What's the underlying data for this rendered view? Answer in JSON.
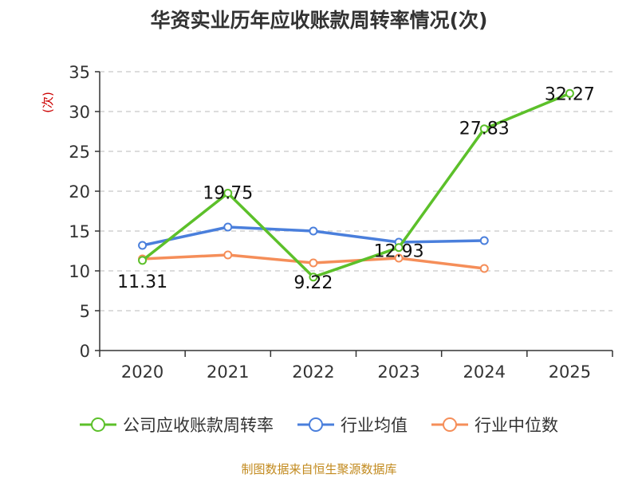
{
  "chart_data": {
    "type": "line",
    "title": "华资实业历年应收账款周转率情况(次)",
    "ylabel": "(次)",
    "xlabel": "",
    "categories": [
      "2020",
      "2021",
      "2022",
      "2023",
      "2024",
      "2025"
    ],
    "ylim": [
      0,
      35
    ],
    "yticks": [
      0,
      5,
      10,
      15,
      20,
      25,
      30,
      35
    ],
    "grid": "horizontal-dashed",
    "legend_position": "bottom",
    "series": [
      {
        "name": "公司应收账款周转率",
        "color": "#5cc02a",
        "values": [
          11.31,
          19.75,
          9.22,
          12.93,
          27.83,
          32.27
        ],
        "labels": [
          "11.31",
          "19.75",
          "9.22",
          "12.93",
          "27.83",
          "32.27"
        ]
      },
      {
        "name": "行业均值",
        "color": "#4a7fdc",
        "values": [
          13.2,
          15.5,
          15.0,
          13.6,
          13.8,
          null
        ]
      },
      {
        "name": "行业中位数",
        "color": "#f58e59",
        "values": [
          11.5,
          12.0,
          11.0,
          11.6,
          10.3,
          null
        ]
      }
    ]
  },
  "source": "制图数据来自恒生聚源数据库"
}
